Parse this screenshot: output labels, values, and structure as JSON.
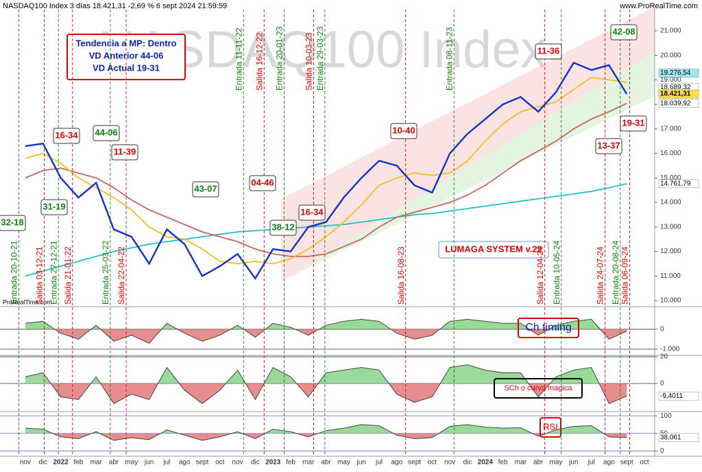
{
  "header": {
    "title": "NASDAQ100 Index 3 días 18.421,31 -2,69 % 6 sept 2024 21:59:59",
    "site": "www.ProRealTime.com",
    "watermark": "NASDAQ100 Index",
    "footer_brand": "ProRealTime.com"
  },
  "chart_data": [
    {
      "type": "line",
      "categories": [
        "nov",
        "dic",
        "2022",
        "feb",
        "mar",
        "abr",
        "may",
        "jun",
        "jul",
        "ago",
        "sept",
        "oct",
        "nov",
        "dic",
        "2023",
        "feb",
        "mar",
        "abr",
        "may",
        "jun",
        "jul",
        "ago",
        "sept",
        "oct",
        "nov",
        "dic",
        "2024",
        "feb",
        "mar",
        "abr",
        "may",
        "jun",
        "jul",
        "ago",
        "sept",
        "oct"
      ],
      "series": [
        {
          "color": "#20c0c8",
          "values": [
            11000,
            11200,
            11400,
            11600,
            11800,
            12000,
            12150,
            12300,
            12400,
            12500,
            12600,
            12700,
            12800,
            12850,
            12900,
            12950,
            13000,
            13050,
            13100,
            13200,
            13300,
            13400,
            13500,
            13550,
            13650,
            13750,
            13850,
            13950,
            14050,
            14150,
            14250,
            14350,
            14450,
            14600,
            14762,
            null
          ]
        },
        {
          "color": "#c86464",
          "values": [
            15000,
            15300,
            15400,
            15200,
            15000,
            14600,
            14100,
            13700,
            13400,
            13100,
            12800,
            12600,
            12400,
            12100,
            11900,
            11800,
            11800,
            11900,
            12200,
            12500,
            13000,
            13400,
            13600,
            13800,
            14000,
            14300,
            14700,
            15200,
            15700,
            16100,
            16500,
            17000,
            17400,
            17700,
            18040,
            null
          ]
        },
        {
          "color": "#f0c020",
          "values": [
            15800,
            16000,
            15600,
            15000,
            14600,
            14200,
            13700,
            13000,
            12600,
            12500,
            12100,
            11600,
            11500,
            11600,
            11500,
            11700,
            12100,
            12600,
            13200,
            13900,
            14700,
            15000,
            15200,
            15100,
            15200,
            15700,
            16500,
            17200,
            17700,
            17900,
            18100,
            18600,
            19100,
            19000,
            18900,
            null
          ]
        },
        {
          "color": "#1030d0",
          "values": [
            16300,
            16400,
            15000,
            14200,
            14800,
            12900,
            12600,
            11500,
            12900,
            12300,
            11000,
            11400,
            11900,
            10900,
            12100,
            12000,
            13000,
            13200,
            14200,
            15000,
            15700,
            15500,
            14700,
            14400,
            16000,
            16800,
            17400,
            18000,
            18300,
            17700,
            18500,
            19700,
            19400,
            19600,
            18421,
            null
          ]
        }
      ],
      "ylim": [
        9750,
        21920
      ],
      "yticks": [
        {
          "value": 10000,
          "label": "10.000"
        },
        {
          "value": 11000,
          "label": "11.000"
        },
        {
          "value": 12000,
          "label": "12.000"
        },
        {
          "value": 13000,
          "label": "13.000"
        },
        {
          "value": 14000,
          "label": "14.000"
        },
        {
          "value": 15000,
          "label": "15.000"
        },
        {
          "value": 16000,
          "label": "16.000"
        },
        {
          "value": 17000,
          "label": "17.000"
        },
        {
          "value": 18000,
          "label": "18.000"
        },
        {
          "value": 19000,
          "label": "19.000"
        },
        {
          "value": 20000,
          "label": "20.000"
        },
        {
          "value": 21000,
          "label": "21.000"
        }
      ],
      "value_tags": [
        {
          "value": 19276.54,
          "label": "19.276,54",
          "color": "#9ee8f0"
        },
        {
          "value": 18689.32,
          "label": "18.689,32",
          "color": "#ffffff"
        },
        {
          "value": 18421.31,
          "label": "18.421,31",
          "color": "#ffe040"
        },
        {
          "value": 18039.92,
          "label": "18.039,92",
          "color": "#ffffff"
        },
        {
          "value": 14761.79,
          "label": "14.761,79",
          "color": "#ffffff"
        }
      ],
      "info_box": [
        "Tendencia a MP: Dentro",
        "VD Anterior 44-06",
        "VD Actual 19-31"
      ],
      "system_label": "LUMAGA SYSTEM v.22",
      "annotations": [
        {
          "text": "16-34",
          "color": "#e00000"
        },
        {
          "text": "44-06",
          "color": "#108010"
        },
        {
          "text": "11-39",
          "color": "#e00000"
        },
        {
          "text": "31-19",
          "color": "#108010"
        },
        {
          "text": "32-18",
          "color": "#108010"
        },
        {
          "text": "43-07",
          "color": "#108010"
        },
        {
          "text": "04-46",
          "color": "#e00000"
        },
        {
          "text": "38-12",
          "color": "#108010"
        },
        {
          "text": "16-34",
          "color": "#e00000"
        },
        {
          "text": "10-40",
          "color": "#e00000"
        },
        {
          "text": "11-36",
          "color": "#e00000"
        },
        {
          "text": "42-08",
          "color": "#108010"
        },
        {
          "text": "19-31",
          "color": "#e00000"
        },
        {
          "text": "13-37",
          "color": "#e00000"
        }
      ],
      "signals": [
        {
          "text": "Entrada 20-10-21",
          "color": "#108010"
        },
        {
          "text": "Salida 03-12-21",
          "color": "#e00000"
        },
        {
          "text": "Entrada 27-12-21",
          "color": "#108010"
        },
        {
          "text": "Salida 21-01-22",
          "color": "#e00000"
        },
        {
          "text": "Entrada 25-03-22",
          "color": "#108010"
        },
        {
          "text": "Salida 22-04-22",
          "color": "#e00000"
        },
        {
          "text": "Entrada 11-11-22",
          "color": "#108010"
        },
        {
          "text": "Salida 16-12-22",
          "color": "#e00000"
        },
        {
          "text": "Entrada 20-01-23",
          "color": "#108010"
        },
        {
          "text": "Salida 10-03-23",
          "color": "#e00000"
        },
        {
          "text": "Entrada 29-03-23",
          "color": "#108010"
        },
        {
          "text": "Salida 16-08-23",
          "color": "#e00000"
        },
        {
          "text": "Entrada 08-11-23",
          "color": "#108010"
        },
        {
          "text": "Salida 12-04-24",
          "color": "#e00000"
        },
        {
          "text": "Entrada 10-05-24",
          "color": "#108010"
        },
        {
          "text": "Salida 24-07-24",
          "color": "#e00000"
        },
        {
          "text": "Entrada 20-08-24",
          "color": "#108010"
        },
        {
          "text": "Salida 06-09-24",
          "color": "#e00000"
        }
      ]
    },
    {
      "type": "area",
      "title": "Ch timing",
      "values": [
        300,
        400,
        -200,
        -500,
        200,
        -600,
        -300,
        -700,
        300,
        -200,
        -600,
        -300,
        200,
        -400,
        300,
        100,
        -300,
        200,
        400,
        500,
        400,
        -200,
        -500,
        -300,
        400,
        500,
        400,
        300,
        300,
        -300,
        200,
        400,
        500,
        -500,
        -100,
        null
      ],
      "ylim": [
        -1310,
        1030
      ],
      "yticks": [
        0,
        {
          "value": -1000,
          "label": "-1.000"
        }
      ]
    },
    {
      "type": "area",
      "title": "SCh o curva magica",
      "values": [
        5,
        8,
        -10,
        -12,
        5,
        -15,
        -8,
        -12,
        12,
        -5,
        -15,
        -5,
        10,
        -12,
        12,
        5,
        -10,
        8,
        10,
        12,
        10,
        -8,
        -14,
        -10,
        12,
        14,
        10,
        8,
        8,
        -10,
        5,
        10,
        12,
        -15,
        -9.4011,
        null
      ],
      "ylim": [
        -21,
        21
      ],
      "yticks": [
        20,
        0
      ],
      "value_tags": [
        {
          "value": -9.4011,
          "label": "-9,4011",
          "color": "#ffffff"
        }
      ]
    },
    {
      "type": "area",
      "title": "RSI",
      "values": [
        65,
        62,
        40,
        35,
        55,
        30,
        38,
        32,
        60,
        45,
        30,
        40,
        55,
        35,
        62,
        55,
        40,
        58,
        65,
        75,
        72,
        45,
        35,
        38,
        70,
        75,
        68,
        65,
        66,
        42,
        60,
        70,
        72,
        40,
        38.061,
        null
      ],
      "ylim": [
        -15,
        112
      ],
      "yticks": [
        100,
        50,
        0
      ],
      "base": 50,
      "value_tags": [
        {
          "value": 38.061,
          "label": "38,061",
          "color": "#ffffff"
        }
      ]
    }
  ]
}
